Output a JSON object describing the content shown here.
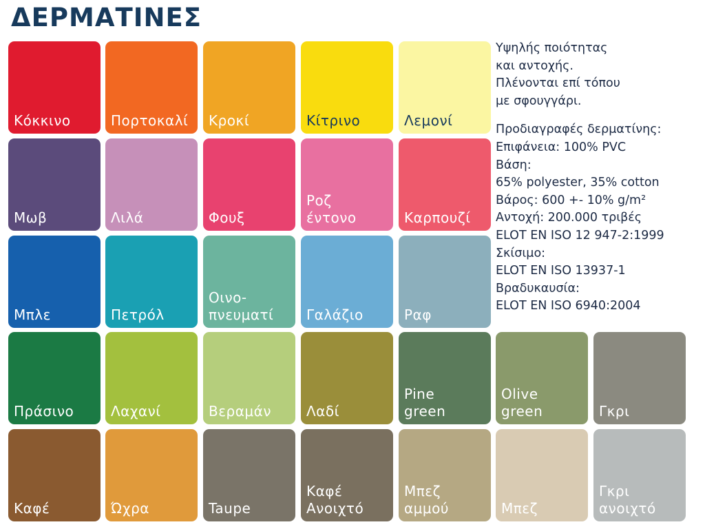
{
  "header": {
    "title": "ΔΕΡΜΑΤΙΝΕΣ"
  },
  "swatches": [
    [
      {
        "lines": [
          "Κόκκινο"
        ],
        "color": "#e01b2f",
        "text_color": "#ffffff"
      },
      {
        "lines": [
          "Πορτοκαλί"
        ],
        "color": "#f26822",
        "text_color": "#ffffff"
      },
      {
        "lines": [
          "Κροκί"
        ],
        "color": "#f0a524",
        "text_color": "#ffffff"
      },
      {
        "lines": [
          "Κίτρινο"
        ],
        "color": "#f9dc0e",
        "text_color": "#173a5c"
      },
      {
        "lines": [
          "Λεμονί"
        ],
        "color": "#fbf6a2",
        "text_color": "#173a5c"
      }
    ],
    [
      {
        "lines": [
          "Μωβ"
        ],
        "color": "#5b4b7b",
        "text_color": "#ffffff"
      },
      {
        "lines": [
          "Λιλά"
        ],
        "color": "#c690b9",
        "text_color": "#ffffff"
      },
      {
        "lines": [
          "Φουξ"
        ],
        "color": "#e8426f",
        "text_color": "#ffffff"
      },
      {
        "lines": [
          "Ροζ",
          "έντονο"
        ],
        "color": "#e870a0",
        "text_color": "#ffffff"
      },
      {
        "lines": [
          "Καρπουζί"
        ],
        "color": "#ee5a6c",
        "text_color": "#ffffff"
      }
    ],
    [
      {
        "lines": [
          "Μπλε"
        ],
        "color": "#1660ad",
        "text_color": "#ffffff"
      },
      {
        "lines": [
          "Πετρόλ"
        ],
        "color": "#1aa0b3",
        "text_color": "#ffffff"
      },
      {
        "lines": [
          "Οινο-",
          "πνευματί"
        ],
        "color": "#6cb49e",
        "text_color": "#ffffff"
      },
      {
        "lines": [
          "Γαλάζιο"
        ],
        "color": "#6badd5",
        "text_color": "#ffffff"
      },
      {
        "lines": [
          "Ραφ"
        ],
        "color": "#8cafbc",
        "text_color": "#ffffff"
      }
    ],
    [
      {
        "lines": [
          "Πράσινο"
        ],
        "color": "#1b7a44",
        "text_color": "#ffffff"
      },
      {
        "lines": [
          "Λαχανί"
        ],
        "color": "#a3c03e",
        "text_color": "#ffffff"
      },
      {
        "lines": [
          "Βεραμάν"
        ],
        "color": "#b5ce7c",
        "text_color": "#ffffff"
      },
      {
        "lines": [
          "Λαδί"
        ],
        "color": "#9a8e3a",
        "text_color": "#ffffff"
      },
      {
        "lines": [
          "Pine",
          "green"
        ],
        "color": "#5b7b5b",
        "text_color": "#ffffff"
      },
      {
        "lines": [
          "Olive",
          "green"
        ],
        "color": "#8a9a6b",
        "text_color": "#ffffff"
      },
      {
        "lines": [
          "Γκρι"
        ],
        "color": "#8b8a80",
        "text_color": "#ffffff"
      }
    ],
    [
      {
        "lines": [
          "Καφέ"
        ],
        "color": "#8a5a30",
        "text_color": "#ffffff"
      },
      {
        "lines": [
          "Ώχρα"
        ],
        "color": "#e09a3b",
        "text_color": "#ffffff"
      },
      {
        "lines": [
          "Taupe"
        ],
        "color": "#7a7468",
        "text_color": "#ffffff"
      },
      {
        "lines": [
          "Καφέ",
          "Ανοιχτό"
        ],
        "color": "#7a705f",
        "text_color": "#ffffff"
      },
      {
        "lines": [
          "Μπεζ",
          "αμμού"
        ],
        "color": "#b5a883",
        "text_color": "#ffffff"
      },
      {
        "lines": [
          "Μπεζ"
        ],
        "color": "#d9cbb3",
        "text_color": "#ffffff"
      },
      {
        "lines": [
          "Γκρι",
          "ανοιχτό"
        ],
        "color": "#b7bbbb",
        "text_color": "#ffffff"
      }
    ]
  ],
  "description": [
    "Υψηλής ποιότητας",
    "και αντοχής.",
    "Πλένονται επί τόπου",
    "με σφουγγάρι."
  ],
  "specs": [
    "Προδιαγραφές δερματίνης:",
    "Επιφάνεια: 100% PVC",
    "Βάση:",
    "65% polyester, 35% cotton",
    "Βάρος: 600 +- 10% g/m²",
    "Αντοχή: 200.000 τριβές",
    "ELOT EN ISO 12 947-2:1999",
    "Σκίσιμο:",
    "ELOT EN ISO 13937-1",
    "Βραδυκαυσία:",
    "ELOT EN ISO 6940:2004"
  ]
}
